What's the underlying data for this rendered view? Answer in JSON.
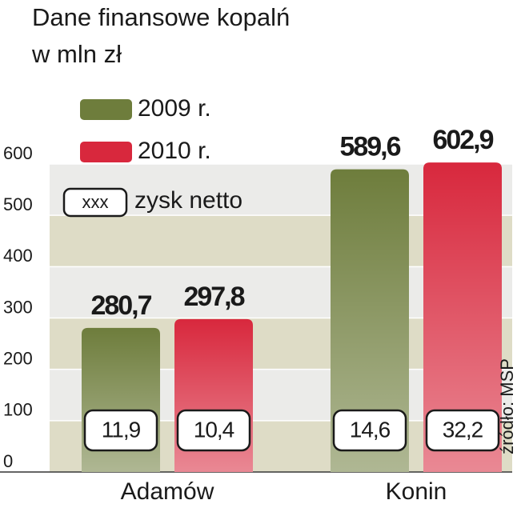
{
  "chart_data": {
    "type": "bar",
    "title": "Dane finansowe kopalń",
    "subtitle": "w mln zł",
    "source": "źródło: MSP",
    "categories": [
      "Adamów",
      "Konin"
    ],
    "series": [
      {
        "name": "2009 r.",
        "color": "#6e7d3c",
        "values": [
          280.7,
          589.6
        ],
        "value_labels": [
          "280,7",
          "589,6"
        ],
        "net_values": [
          11.9,
          14.6
        ],
        "net_labels": [
          "11,9",
          "14,6"
        ]
      },
      {
        "name": "2010 r.",
        "color": "#d8283d",
        "values": [
          297.8,
          602.9
        ],
        "value_labels": [
          "297,8",
          "602,9"
        ],
        "net_values": [
          10.4,
          32.2
        ],
        "net_labels": [
          "10,4",
          "32,2"
        ]
      }
    ],
    "net_legend": {
      "sample": "xxx",
      "name": "zysk netto"
    },
    "ylim": [
      0,
      600
    ],
    "yticks": [
      0,
      100,
      200,
      300,
      400,
      500,
      600
    ],
    "grid": true
  }
}
